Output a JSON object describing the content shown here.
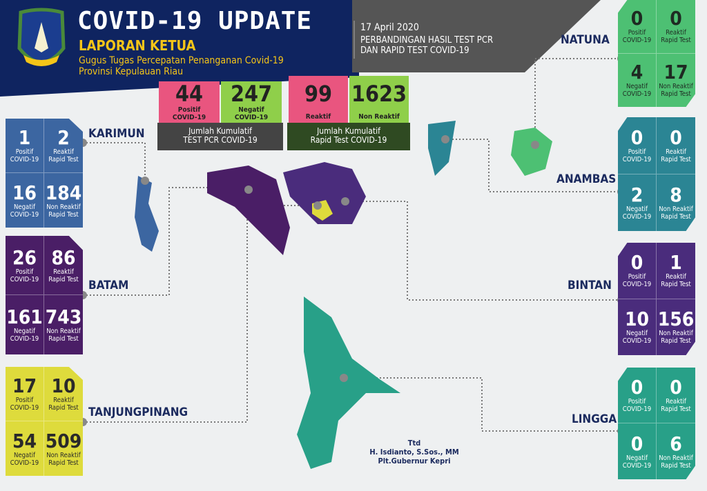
{
  "header": {
    "title": "COVID-19 UPDATE",
    "subtitle": "LAPORAN KETUA",
    "org_line1": "Gugus Tugas Percepatan Penanganan Covid-19",
    "org_line2": "Provinsi Kepulauan Riau",
    "date": "17  April 2020",
    "comparison_line1": "PERBANDINGAN HASIL TEST PCR",
    "comparison_line2": "DAN RAPID TEST COVID-19",
    "logo_text": "Provinsi Kepulauan Riau"
  },
  "totals": {
    "pcr": {
      "positive": "44",
      "positive_label1": "Positif",
      "positive_label2": "COVID-19",
      "negative": "247",
      "negative_label1": "Negatif",
      "negative_label2": "COVID-19",
      "caption1": "Jumlah Kumulatif",
      "caption2": "TEST PCR COVID-19"
    },
    "rapid": {
      "reactive": "99",
      "reactive_label": "Reaktif",
      "nonreactive": "1623",
      "nonreactive_label": "Non Reaktif",
      "caption1": "Jumlah Kumulatif",
      "caption2": "Rapid Test COVID-19"
    }
  },
  "labels": {
    "pos": [
      "Positif",
      "COVID-19"
    ],
    "rea": [
      "Reaktif",
      "Rapid Test"
    ],
    "neg": [
      "Negatif",
      "COVID-19"
    ],
    "non": [
      "Non Reaktif",
      "Rapid Test"
    ]
  },
  "regions": [
    {
      "name": "KARIMUN",
      "color": "#3c66a1",
      "text": "#ffffff",
      "values": [
        "1",
        "2",
        "16",
        "184"
      ]
    },
    {
      "name": "BATAM",
      "color": "#4a1e66",
      "text": "#ffffff",
      "values": [
        "26",
        "86",
        "161",
        "743"
      ]
    },
    {
      "name": "TANJUNGPINANG",
      "color": "#dedb3c",
      "text": "#2a2a2a",
      "values": [
        "17",
        "10",
        "54",
        "509"
      ]
    },
    {
      "name": "NATUNA",
      "color": "#4dc073",
      "text": "#1e2a22",
      "values": [
        "0",
        "0",
        "4",
        "17"
      ]
    },
    {
      "name": "ANAMBAS",
      "color": "#2b8594",
      "text": "#ffffff",
      "values": [
        "0",
        "0",
        "2",
        "8"
      ]
    },
    {
      "name": "BINTAN",
      "color": "#4a2c7c",
      "text": "#ffffff",
      "values": [
        "0",
        "1",
        "10",
        "156"
      ]
    },
    {
      "name": "LINGGA",
      "color": "#28a088",
      "text": "#ffffff",
      "values": [
        "0",
        "0",
        "0",
        "6"
      ]
    }
  ],
  "signature": {
    "line1": "Ttd",
    "line2": "H. Isdianto, S.Sos., MM",
    "line3": "Plt.Gubernur Kepri"
  },
  "colors": {
    "navy": "#0f2460",
    "gray": "#555555",
    "pink": "#e9557f",
    "lime": "#8fcf4a",
    "gold": "#f5c518"
  }
}
